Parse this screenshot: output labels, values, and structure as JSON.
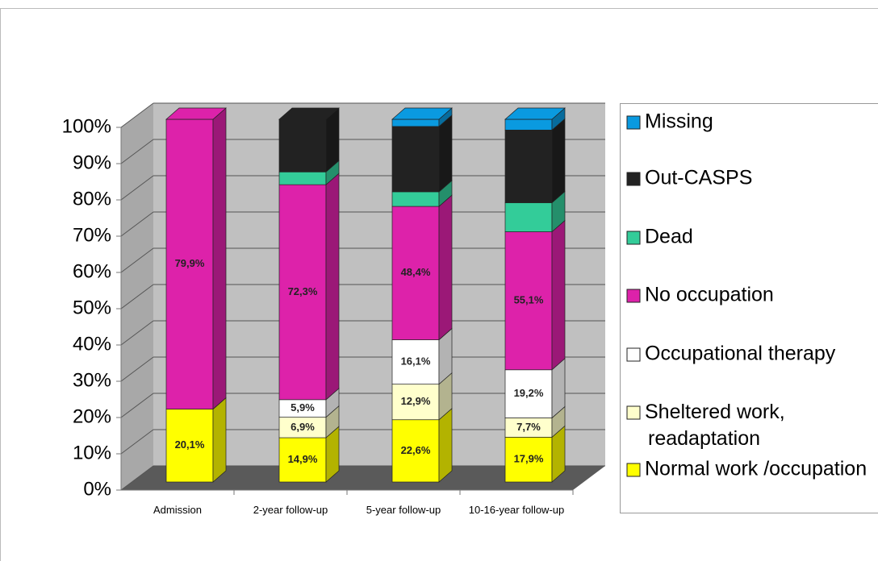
{
  "chart_data": {
    "type": "bar",
    "stacked": "percent",
    "categories": [
      "Admission",
      "2-year follow-up",
      "5-year follow-up",
      "10-16-year follow-up"
    ],
    "series": [
      {
        "name": "Normal work /occupation",
        "color": "#ffff00",
        "values": [
          20.1,
          14.9,
          22.6,
          17.9
        ],
        "value_labels": [
          "20,1%",
          "14,9%",
          "22,6%",
          "17,9%"
        ]
      },
      {
        "name": "Sheltered work, readaptation",
        "color": "#ffffcc",
        "values": [
          0,
          6.9,
          12.9,
          7.7
        ],
        "value_labels": [
          null,
          "6,9%",
          "12,9%",
          "7,7%"
        ]
      },
      {
        "name": "Occupational therapy",
        "color": "#ffffff",
        "values": [
          0,
          5.9,
          16.1,
          19.2
        ],
        "value_labels": [
          null,
          "5,9%",
          "16,1%",
          "19,2%"
        ]
      },
      {
        "name": "No occupation",
        "color": "#dd22aa",
        "values": [
          79.9,
          72.3,
          48.4,
          55.1
        ],
        "value_labels": [
          "79,9%",
          "72,3%",
          "48,4%",
          "55,1%"
        ]
      },
      {
        "name": "Dead",
        "color": "#33cc99",
        "values": [
          0,
          4.3,
          5.3,
          11.6
        ]
      },
      {
        "name": "Out-CASPS",
        "color": "#222222",
        "values": [
          0,
          17.7,
          23.7,
          29
        ]
      },
      {
        "name": "Missing",
        "color": "#0a9ae0",
        "values": [
          0,
          0,
          2.6,
          4.3
        ]
      }
    ],
    "ylim": [
      0,
      100
    ],
    "yticks": [
      {
        "value": 0,
        "label": "0%"
      },
      {
        "value": 10,
        "label": "10%"
      },
      {
        "value": 20,
        "label": "20%"
      },
      {
        "value": 30,
        "label": "30%"
      },
      {
        "value": 40,
        "label": "40%"
      },
      {
        "value": 50,
        "label": "50%"
      },
      {
        "value": 60,
        "label": "60%"
      },
      {
        "value": 70,
        "label": "70%"
      },
      {
        "value": 80,
        "label": "80%"
      },
      {
        "value": 90,
        "label": "90%"
      },
      {
        "value": 100,
        "label": "100%"
      }
    ],
    "grid": true
  }
}
